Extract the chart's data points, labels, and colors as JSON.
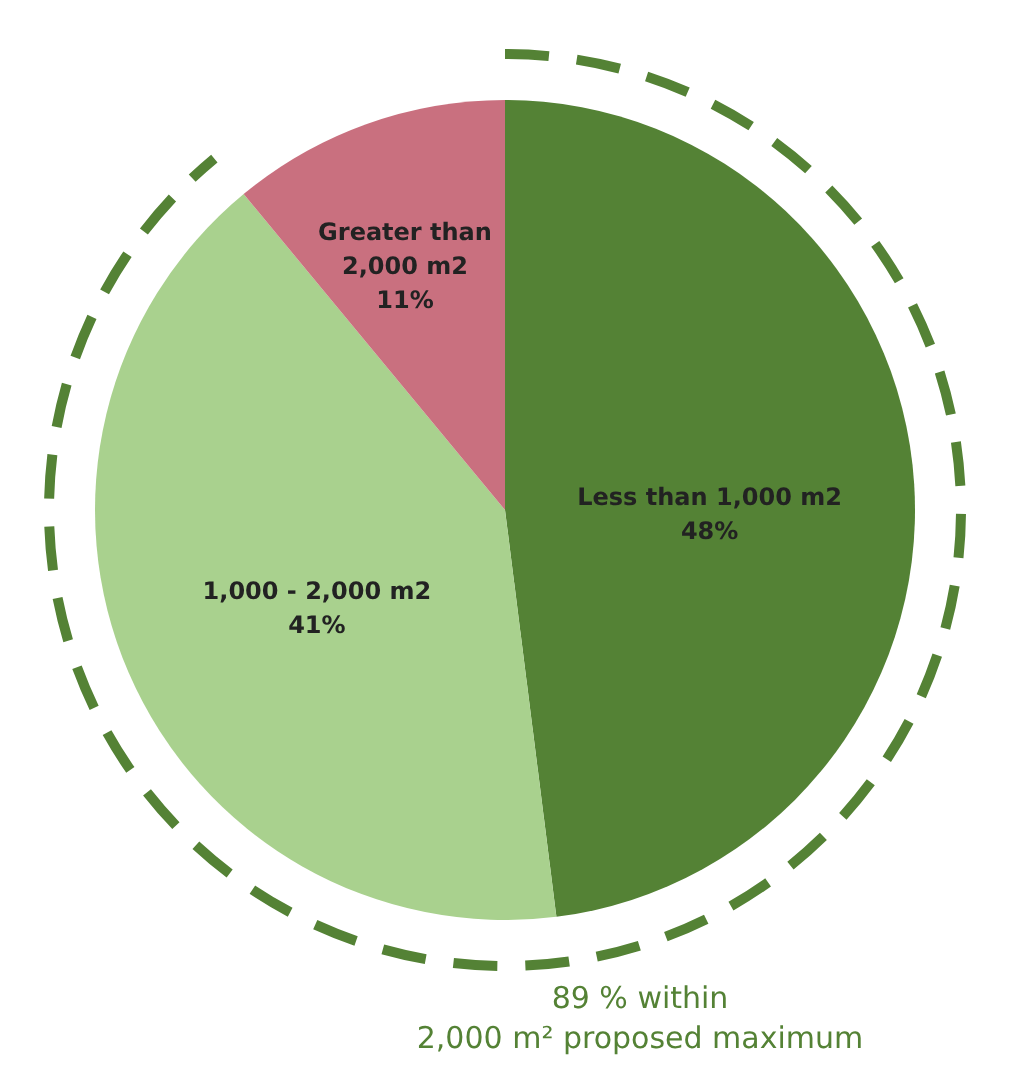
{
  "chart_data": {
    "type": "pie",
    "categories": [
      "Less than 1,000 m2",
      "1,000 - 2,000 m2",
      "Greater than 2,000 m2"
    ],
    "values": [
      48,
      41,
      11
    ],
    "colors": [
      "#548235",
      "#a9d18e",
      "#c9707f"
    ],
    "value_labels": [
      "48%",
      "41%",
      "11%"
    ],
    "annotations": [
      "89 % within",
      "2,000 m² proposed maximum"
    ]
  }
}
